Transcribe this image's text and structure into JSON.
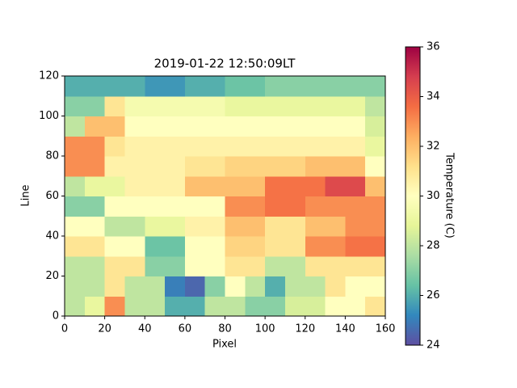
{
  "chart_data": {
    "type": "heatmap",
    "title": "2019-01-22 12:50:09LT",
    "x_label": "Pixel",
    "y_label": "Line",
    "colorbar_label": "Temperature (C)",
    "xlim": [
      0,
      160
    ],
    "ylim": [
      0,
      120
    ],
    "xticks": [
      0,
      20,
      40,
      60,
      80,
      100,
      120,
      140,
      160
    ],
    "yticks": [
      0,
      20,
      40,
      60,
      80,
      100,
      120
    ],
    "clim": [
      24,
      36
    ],
    "cticks": [
      24,
      26,
      28,
      30,
      32,
      34,
      36
    ],
    "colormap": [
      "#5e4fa2",
      "#3288bd",
      "#66c2a5",
      "#abdda4",
      "#e6f598",
      "#ffffbf",
      "#fee08b",
      "#fdae61",
      "#f46d43",
      "#d53e4f",
      "#9e0142"
    ],
    "z": [
      [
        28,
        29,
        33,
        28,
        28,
        26,
        26,
        28,
        28,
        27,
        27,
        28.5,
        28.5,
        30,
        30,
        31
      ],
      [
        28,
        28,
        31,
        28,
        28,
        25,
        24.5,
        27,
        30,
        28,
        26,
        28,
        28,
        31,
        30,
        30
      ],
      [
        28,
        28,
        31,
        31,
        27,
        27,
        30,
        30,
        31,
        31,
        28,
        28,
        31,
        31,
        31,
        31
      ],
      [
        31,
        31,
        30,
        30,
        26.5,
        26.5,
        30,
        30,
        31.5,
        31.5,
        31,
        31,
        33,
        33,
        33.5,
        33.5
      ],
      [
        30,
        30,
        28,
        28,
        29,
        29,
        30.5,
        30.5,
        32,
        32,
        31,
        31,
        32,
        32,
        33,
        33
      ],
      [
        27,
        27,
        30,
        30,
        30,
        30,
        30,
        30,
        33,
        33,
        33.5,
        33.5,
        33,
        33,
        33,
        33
      ],
      [
        28,
        29,
        29,
        30.5,
        30.5,
        30.5,
        32,
        32,
        32,
        32,
        33.5,
        33.5,
        33.5,
        34.5,
        34.5,
        32
      ],
      [
        33,
        33,
        30.5,
        30.5,
        30.5,
        30.5,
        31,
        31,
        31.5,
        31.5,
        31.5,
        31.5,
        32,
        32,
        32,
        30
      ],
      [
        33,
        33,
        31,
        30.5,
        30.5,
        30.5,
        30.5,
        30.5,
        30.5,
        30.5,
        30.5,
        30.5,
        30.5,
        30.5,
        30.5,
        29
      ],
      [
        28,
        32,
        32,
        30,
        30,
        30,
        30,
        30,
        30,
        30,
        30,
        30,
        30,
        30,
        30,
        28.5
      ],
      [
        27,
        27,
        31,
        29.5,
        29.5,
        29.5,
        29.5,
        29.5,
        29,
        29,
        29,
        29,
        29,
        29,
        29,
        28
      ],
      [
        26,
        26,
        26,
        26,
        25.5,
        25.5,
        26,
        26,
        26.5,
        26.5,
        27,
        27,
        27,
        27,
        27,
        27
      ]
    ]
  }
}
